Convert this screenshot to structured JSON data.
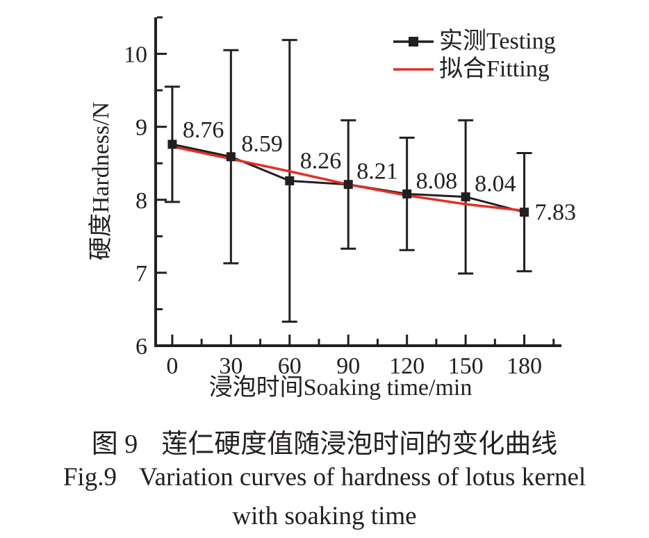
{
  "figure": {
    "caption_zh": {
      "tag": "图 9",
      "text": "莲仁硬度值随浸泡时间的变化曲线"
    },
    "caption_en_line1": {
      "tag": "Fig.9",
      "text": "Variation curves of hardness of lotus kernel"
    },
    "caption_en_line2": "with soaking time"
  },
  "chart_data": {
    "type": "line",
    "title": "",
    "xlabel": "浸泡时间Soaking time/min",
    "ylabel": "硬度Hardness/N",
    "x": [
      0,
      30,
      60,
      90,
      120,
      150,
      180
    ],
    "series": [
      {
        "name": "实测Testing",
        "style": "line+square-marker",
        "color": "#221f20",
        "values": [
          8.76,
          8.59,
          8.26,
          8.21,
          8.08,
          8.04,
          7.83
        ],
        "error_plus": [
          0.79,
          1.46,
          1.93,
          0.88,
          0.77,
          1.05,
          0.81
        ],
        "error_minus": [
          0.79,
          1.46,
          1.93,
          0.88,
          0.77,
          1.05,
          0.81
        ]
      },
      {
        "name": "拟合Fitting",
        "style": "line",
        "color": "#e42e24",
        "values": [
          8.73,
          8.56,
          8.39,
          8.21,
          8.06,
          7.94,
          7.85
        ]
      }
    ],
    "point_labels": [
      "8.76",
      "8.59",
      "8.26",
      "8.21",
      "8.08",
      "8.04",
      "7.83"
    ],
    "xlim": [
      -8.5,
      199
    ],
    "ylim": [
      6,
      10.5
    ],
    "x_major_ticks": [
      0,
      30,
      60,
      90,
      120,
      150,
      180
    ],
    "x_minor_ticks": [
      15,
      45,
      75,
      105,
      135,
      165,
      195
    ],
    "y_major_ticks": [
      6,
      7,
      8,
      9,
      10
    ],
    "y_minor_ticks": [
      6.5,
      7.5,
      8.5,
      9.5,
      10.5
    ],
    "grid": false,
    "legend": {
      "position": "top-right",
      "entries": [
        {
          "label": "实测Testing",
          "color": "#221f20",
          "marker": "square-on-line"
        },
        {
          "label": "拟合Fitting",
          "color": "#e42e24",
          "marker": "line"
        }
      ]
    }
  }
}
